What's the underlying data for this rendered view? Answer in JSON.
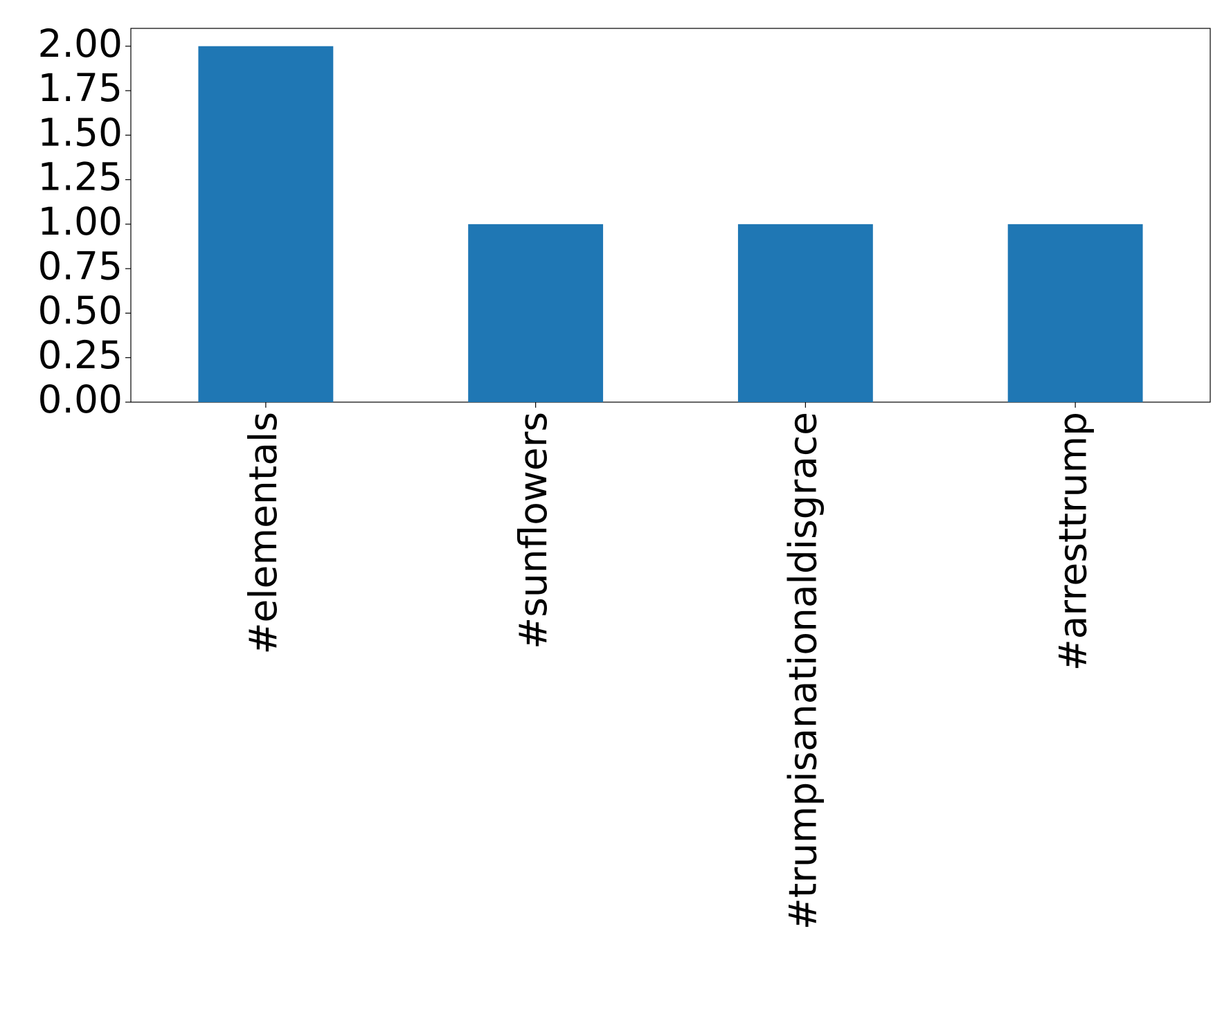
{
  "chart_data": {
    "type": "bar",
    "categories": [
      "#elementals",
      "#sunflowers",
      "#trumpisanationaldisgrace",
      "#arresttrump"
    ],
    "values": [
      2,
      1,
      1,
      1
    ],
    "color": "#1f77b4",
    "ylim": [
      0,
      2.1
    ],
    "yticks": [
      {
        "value": 0,
        "label": "0.00"
      },
      {
        "value": 0.25,
        "label": "0.25"
      },
      {
        "value": 0.5,
        "label": "0.50"
      },
      {
        "value": 0.75,
        "label": "0.75"
      },
      {
        "value": 1,
        "label": "1.00"
      },
      {
        "value": 1.25,
        "label": "1.25"
      },
      {
        "value": 1.5,
        "label": "1.50"
      },
      {
        "value": 1.75,
        "label": "1.75"
      },
      {
        "value": 2,
        "label": "2.00"
      }
    ],
    "grid": false
  }
}
